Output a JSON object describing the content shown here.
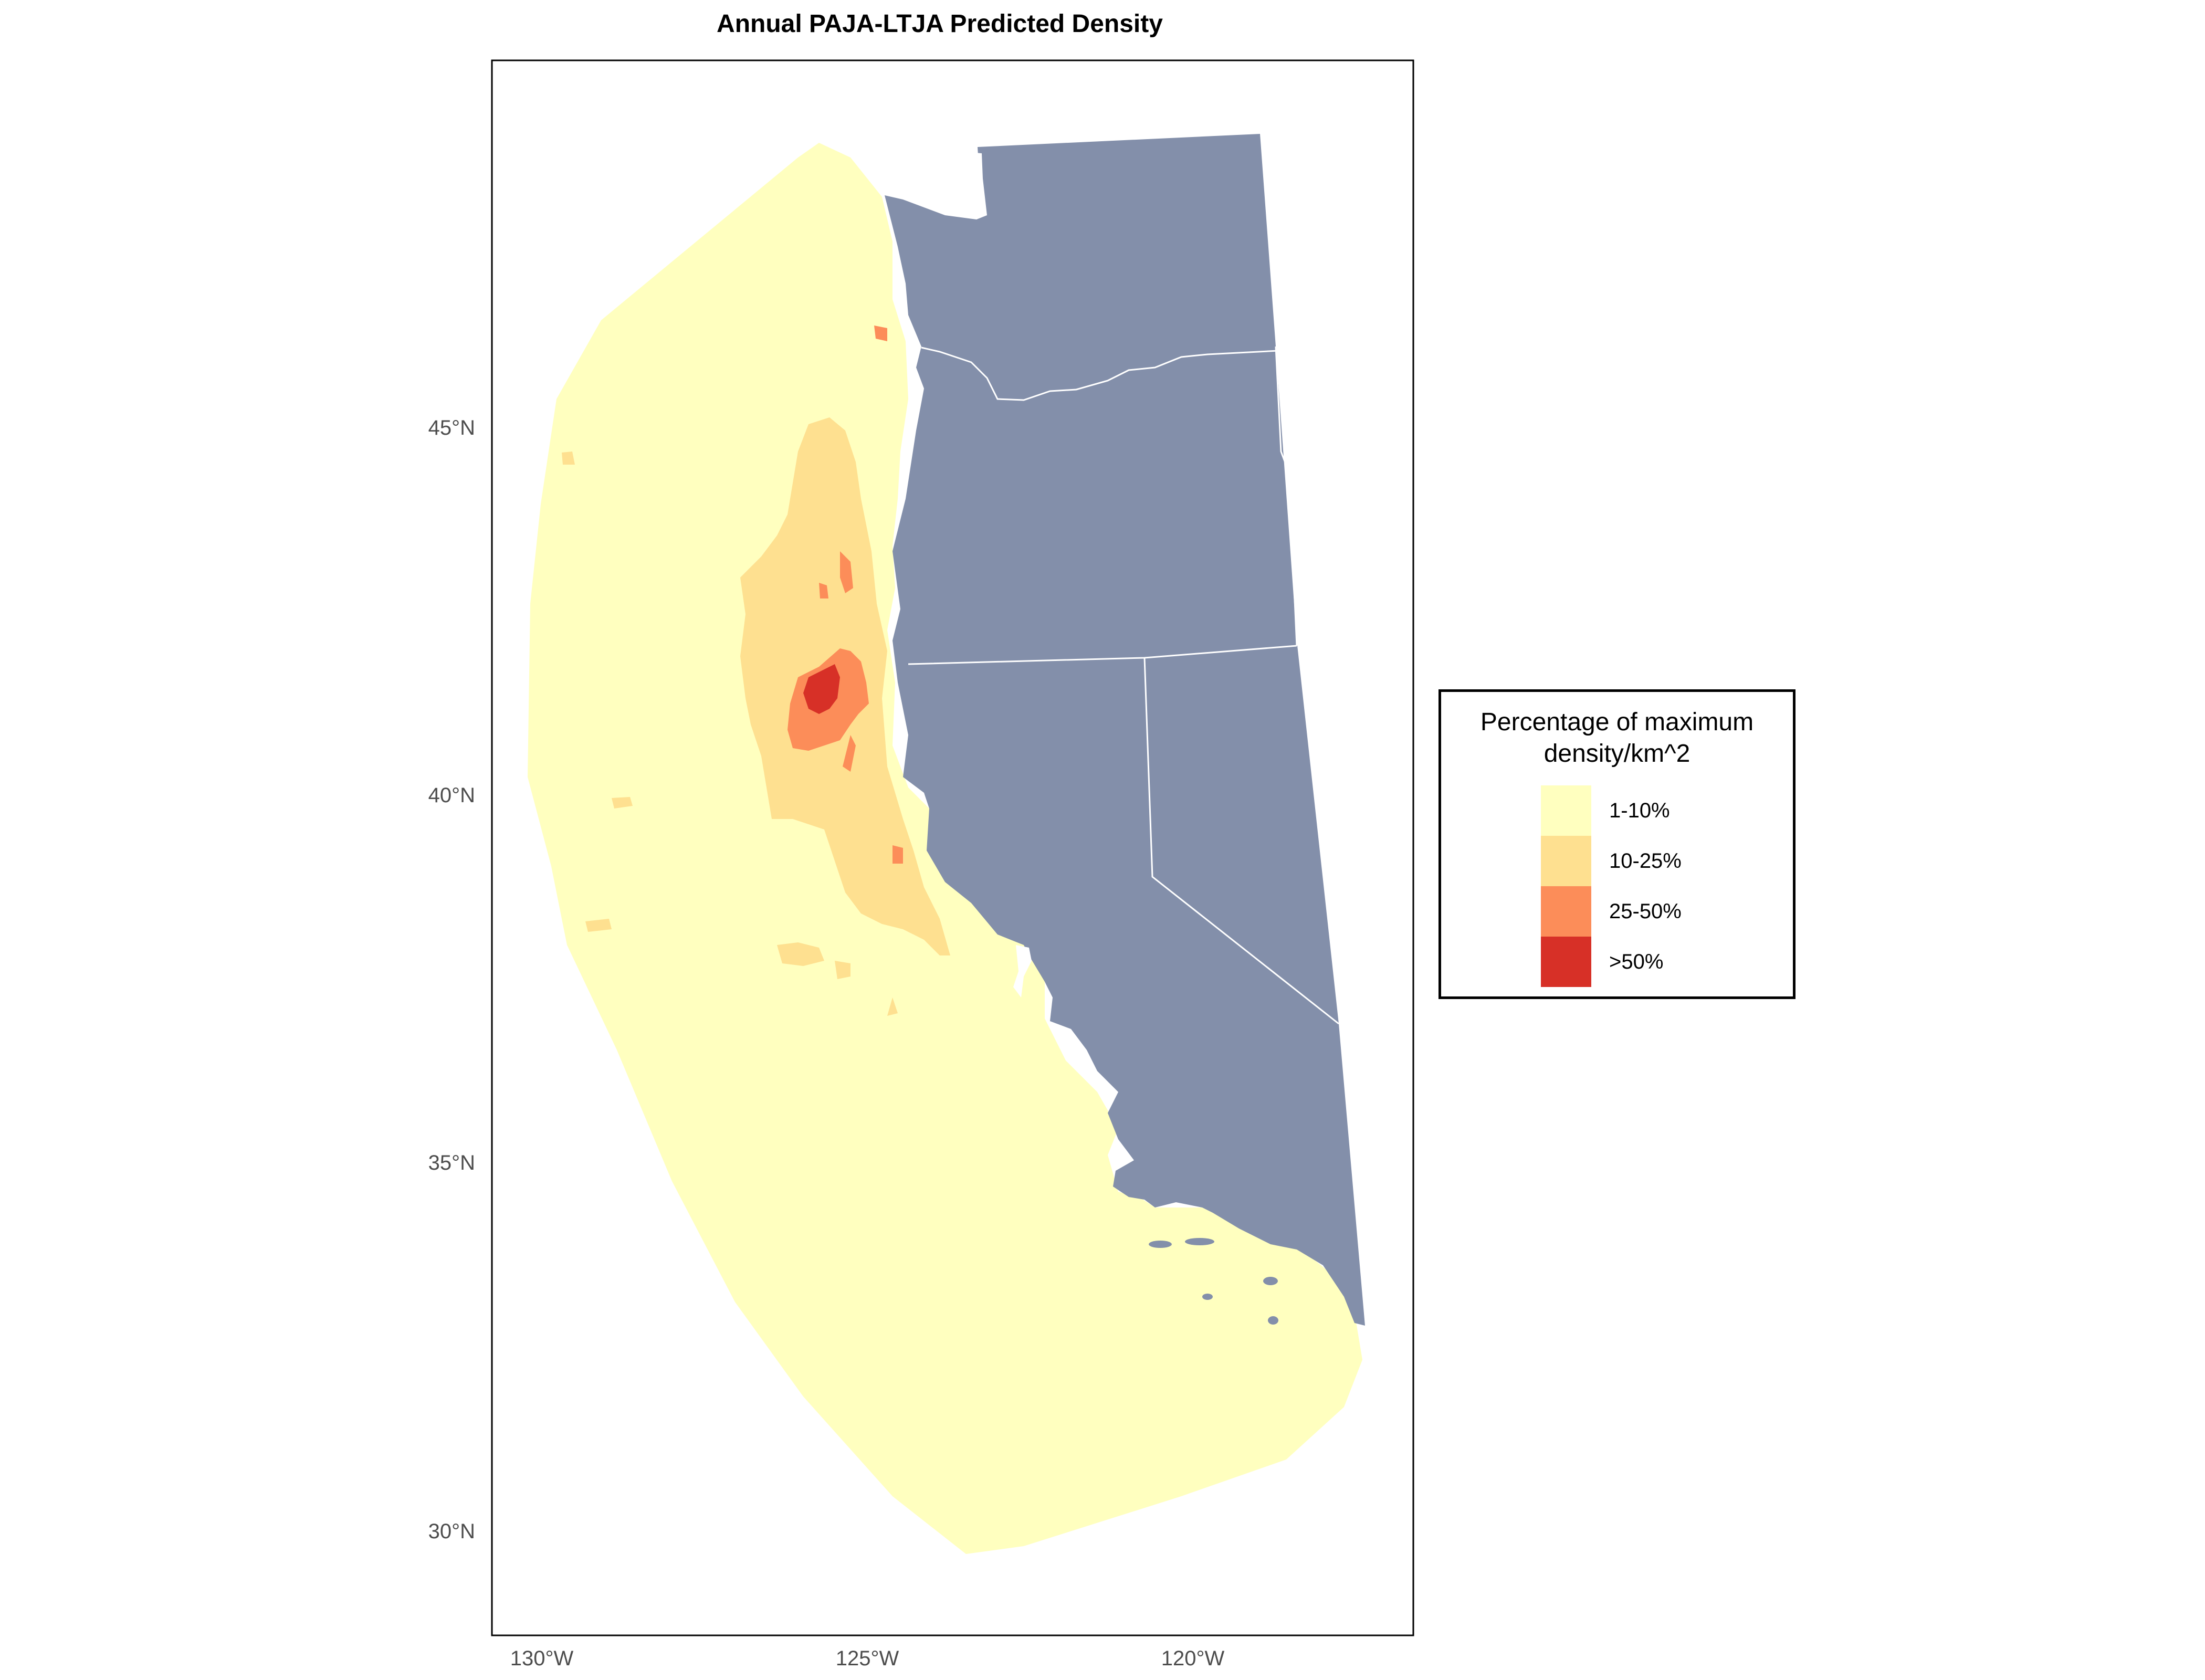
{
  "title": "Annual PAJA-LTJA Predicted Density",
  "axes": {
    "y_ticks": [
      "45°N",
      "40°N",
      "35°N",
      "30°N"
    ],
    "x_ticks": [
      "130°W",
      "125°W",
      "120°W"
    ]
  },
  "legend": {
    "title": "Percentage of maximum\ndensity/km^2",
    "items": [
      {
        "label": "1-10%",
        "color": "#FFFFBF"
      },
      {
        "label": "10-25%",
        "color": "#FEE090"
      },
      {
        "label": "25-50%",
        "color": "#FC8D59"
      },
      {
        "label": ">50%",
        "color": "#D73027"
      }
    ]
  },
  "colors": {
    "land": "#838FAA",
    "state_border": "#ffffff",
    "frame": "#000000"
  }
}
